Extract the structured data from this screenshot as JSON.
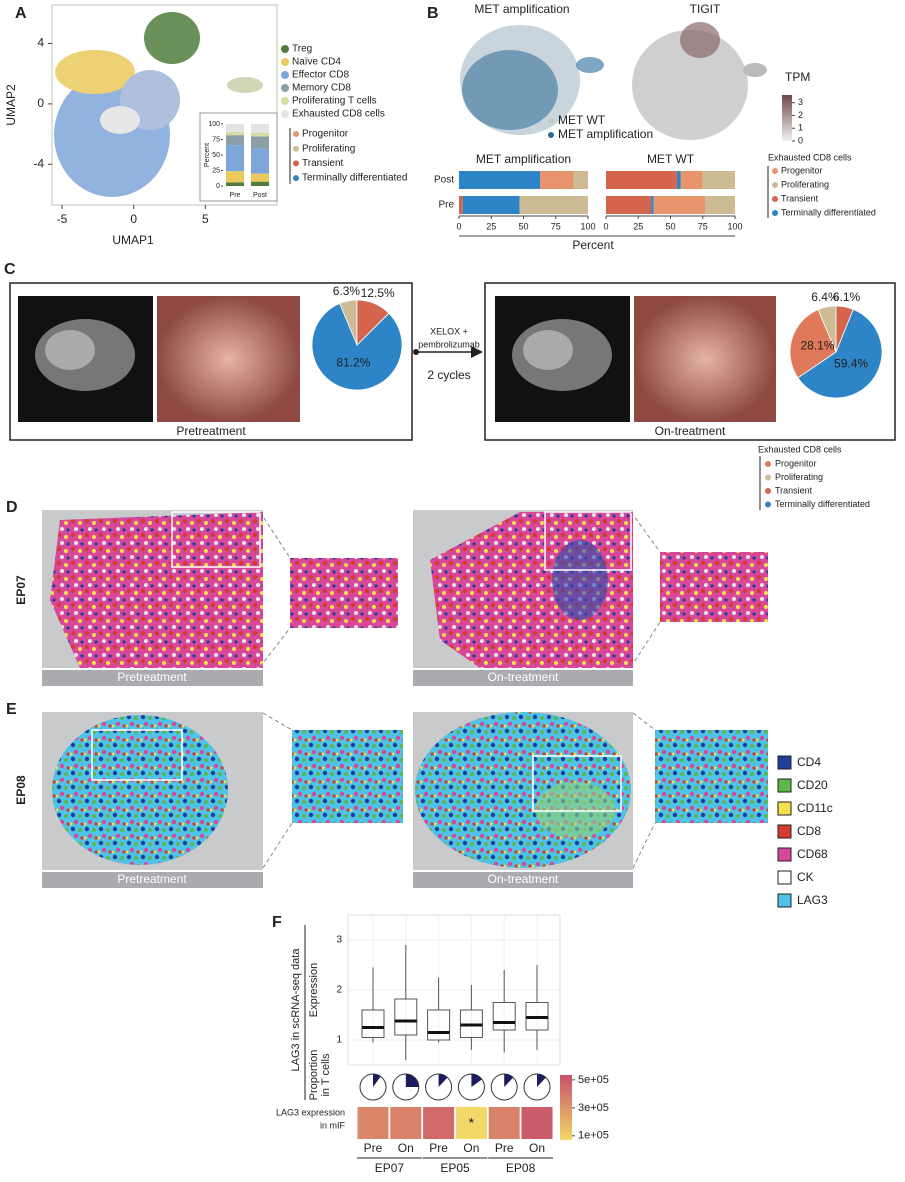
{
  "panel_labels": {
    "a": "A",
    "b": "B",
    "c": "C",
    "d": "D",
    "e": "E",
    "f": "F"
  },
  "images": {
    "d": {
      "sample": "EP07",
      "captions": [
        "Pretreatment",
        "On-treatment"
      ]
    },
    "e": {
      "sample": "EP08",
      "captions": [
        "Pretreatment",
        "On-treatment"
      ],
      "legend": [
        {
          "name": "CD4",
          "color": "#1f3f9a"
        },
        {
          "name": "CD20",
          "color": "#5cb84a"
        },
        {
          "name": "CD11c",
          "color": "#f2e14a"
        },
        {
          "name": "CD8",
          "color": "#d33b2c"
        },
        {
          "name": "CD68",
          "color": "#d8479a"
        },
        {
          "name": "CK",
          "color": "#ffffff"
        },
        {
          "name": "LAG3",
          "color": "#4ec3e6"
        }
      ]
    }
  },
  "chart_data": [
    {
      "type": "umap",
      "xlabel": "UMAP1",
      "ylabel": "UMAP2",
      "xlim": [
        -5.7,
        10
      ],
      "ylim": [
        -6.7,
        6.55
      ],
      "xticks": [
        -5,
        0,
        5
      ],
      "yticks": [
        -4,
        0,
        4
      ],
      "categories": [
        "Pre",
        "Post"
      ],
      "inset_ylabel": "Percent",
      "inset_ylim": [
        0,
        100
      ],
      "inset_yticks": [
        0,
        25,
        50,
        75,
        100
      ],
      "series": [
        {
          "name": "Treg",
          "color": "#4f7d3c",
          "values": [
            6,
            7
          ]
        },
        {
          "name": "Naïve CD4",
          "color": "#ecc95c",
          "values": [
            18,
            13
          ]
        },
        {
          "name": "Effector CD8",
          "color": "#7fa6da",
          "values": [
            42,
            40
          ]
        },
        {
          "name": "Memory CD8",
          "color": "#8c9fa6",
          "values": [
            16,
            20
          ]
        },
        {
          "name": "Proliferating T cells",
          "color": "#d5dca0",
          "values": [
            5,
            6
          ]
        },
        {
          "name": "Exhausted CD8 cells",
          "color": "#e3e3e3",
          "values": [
            13,
            14
          ]
        }
      ],
      "subsets": [
        {
          "name": "Progenitor",
          "color": "#e8946c"
        },
        {
          "name": "Proliferating",
          "color": "#cdbb96"
        },
        {
          "name": "Transient",
          "color": "#d5644c"
        },
        {
          "name": "Terminally differentiated",
          "color": "#2d84c6"
        }
      ]
    },
    {
      "type": "umap-pair",
      "titles": [
        "MET amplification",
        "TIGIT"
      ],
      "series": [
        {
          "name": "MET WT",
          "color": "#c9c9c9"
        },
        {
          "name": "MET amplification",
          "color": "#2a6a99"
        }
      ],
      "colorbar": {
        "title": "TPM",
        "lim": [
          0,
          3.6
        ],
        "ticks": [
          0,
          1,
          2,
          3
        ],
        "colors": [
          "#f2f0f2",
          "#6e4a48"
        ]
      }
    },
    {
      "type": "hbar-stacked",
      "facets": [
        "MET amplification",
        "MET WT"
      ],
      "categories": [
        "Post",
        "Pre"
      ],
      "xlabel": "Percent",
      "xlim": [
        0,
        100
      ],
      "xticks": [
        0,
        25,
        50,
        75,
        100
      ],
      "legend_title": "Exhausted CD8 cells",
      "series": [
        {
          "name": "Transient",
          "color": "#d5644c",
          "values": [
            [
              0,
              3
            ],
            [
              55,
              35
            ]
          ]
        },
        {
          "name": "Terminally differentiated",
          "color": "#2d84c6",
          "values": [
            [
              63,
              44
            ],
            [
              3,
              2
            ]
          ]
        },
        {
          "name": "Progenitor",
          "color": "#e8946c",
          "values": [
            [
              26,
              0
            ],
            [
              17,
              40
            ]
          ]
        },
        {
          "name": "Proliferating",
          "color": "#cdbb96",
          "values": [
            [
              11,
              53
            ],
            [
              25,
              23
            ]
          ]
        }
      ]
    },
    {
      "type": "pie",
      "categories": [
        "Progenitor",
        "Proliferating",
        "Transient",
        "Terminally differentiated"
      ],
      "colors": [
        "#e0785a",
        "#cdbb96",
        "#d5644c",
        "#2d84c6"
      ],
      "legend_title": "Exhausted CD8 cells",
      "treatment": [
        "XELOX +",
        "pembrolizumab",
        "2 cycles"
      ],
      "pies": [
        {
          "title": "Pretreatment",
          "values": [
            null,
            6.3,
            12.5,
            81.2
          ],
          "value_labels": [
            null,
            "6.3%",
            "12.5%",
            "81.2%"
          ]
        },
        {
          "title": "On-treatment",
          "values": [
            28.1,
            6.4,
            6.1,
            59.4
          ],
          "value_labels": [
            "28.1%",
            "6.4%",
            "6.1%",
            "59.4%"
          ]
        }
      ]
    },
    {
      "type": "box",
      "categories": [
        "Pre",
        "On",
        "Pre",
        "On",
        "Pre",
        "On"
      ],
      "groups": [
        "EP07",
        "EP05",
        "EP08"
      ],
      "ylabel": "LAG3 in scRNA-seq data",
      "ylabel_top": "Expression",
      "ylabel_bottom": [
        "Proportion",
        "in T cells"
      ],
      "heat_label": [
        "LAG3 expression",
        "in mIF"
      ],
      "ylim": [
        0.5,
        3.5
      ],
      "yticks": [
        1,
        2,
        3
      ],
      "grid": true,
      "boxes": {
        "low": [
          0.95,
          0.6,
          0.95,
          0.8,
          0.75,
          0.8
        ],
        "q1": [
          1.05,
          1.1,
          1.0,
          1.05,
          1.2,
          1.2
        ],
        "median": [
          1.25,
          1.38,
          1.15,
          1.3,
          1.35,
          1.45
        ],
        "q3": [
          1.6,
          1.82,
          1.6,
          1.6,
          1.75,
          1.75
        ],
        "high": [
          2.45,
          2.9,
          2.25,
          2.1,
          2.4,
          2.5
        ]
      },
      "proportions": [
        10,
        25,
        12,
        15,
        12,
        12
      ],
      "heat_values": [
        350000,
        360000,
        450000,
        70000,
        360000,
        500000
      ],
      "heat_annotations": [
        null,
        null,
        null,
        "*",
        null,
        null
      ],
      "clim": [
        70000,
        535000
      ],
      "cticks": [
        {
          "value": 500000,
          "label": "5e+05"
        },
        {
          "value": 300000,
          "label": "3e+05"
        },
        {
          "value": 100000,
          "label": "1e+05"
        }
      ],
      "colors": [
        "#f2d868",
        "#c8506a"
      ]
    }
  ]
}
